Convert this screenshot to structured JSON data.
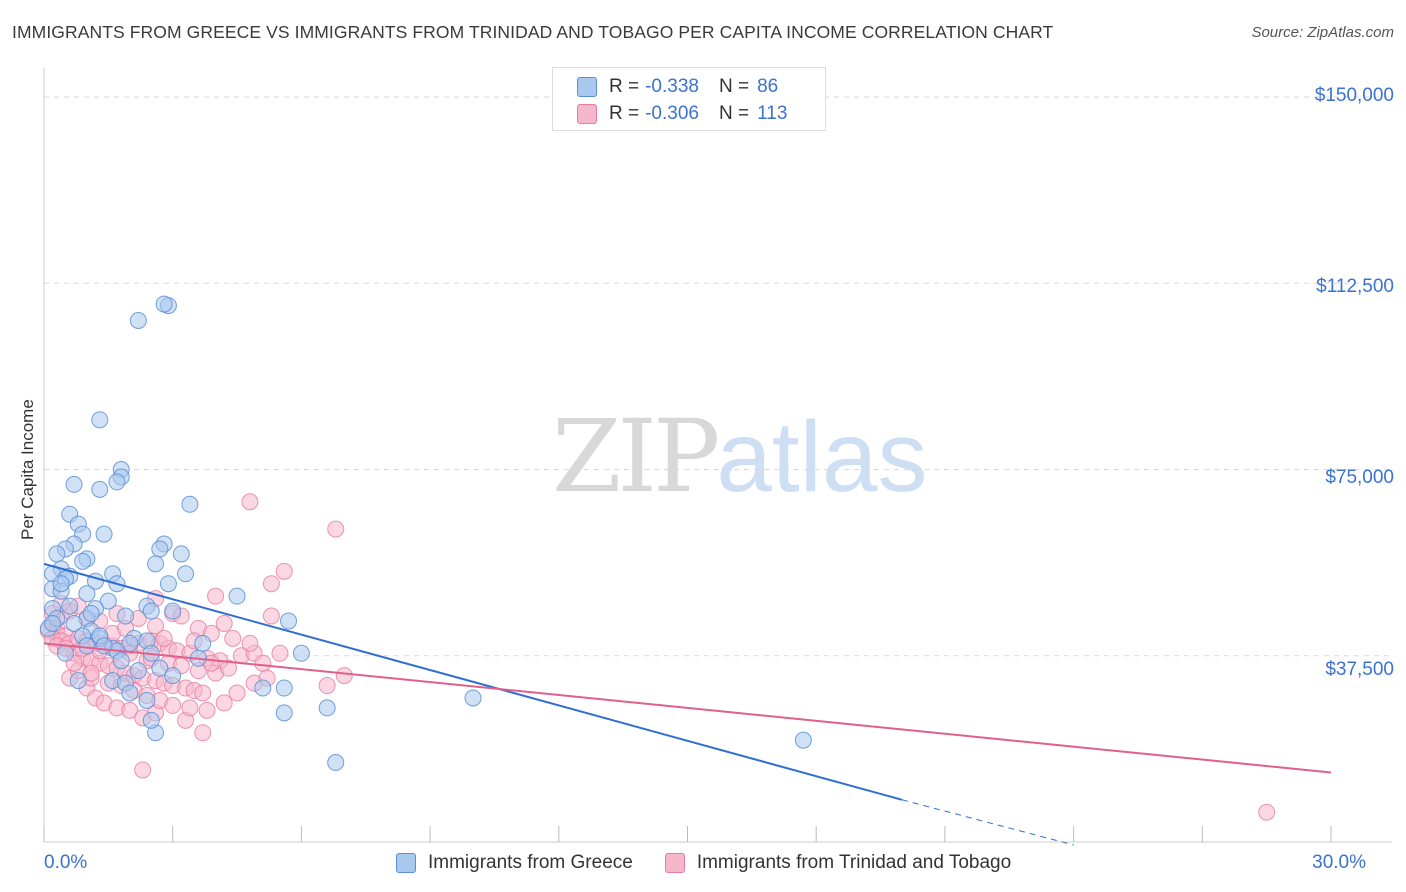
{
  "title": "IMMIGRANTS FROM GREECE VS IMMIGRANTS FROM TRINIDAD AND TOBAGO PER CAPITA INCOME CORRELATION CHART",
  "source": "Source: ZipAtlas.com",
  "watermark": {
    "zip": "ZIP",
    "atlas": "atlas"
  },
  "colors": {
    "greece_fill": "#a9c8ee",
    "greece_stroke": "#5b8fd6",
    "greece_line": "#2f6fd1",
    "tt_fill": "#f5b7cb",
    "tt_stroke": "#e87ba0",
    "tt_line": "#e0608c",
    "tick_text": "#3a72d0",
    "grid": "#d9d9d9"
  },
  "legend": {
    "rows": [
      {
        "r_label": "R =",
        "r_value": "-0.338",
        "n_label": "N =",
        "n_value": "86"
      },
      {
        "r_label": "R =",
        "r_value": "-0.306",
        "n_label": "N =",
        "n_value": "113"
      }
    ]
  },
  "chart_data": {
    "type": "scatter",
    "title": "IMMIGRANTS FROM GREECE VS IMMIGRANTS FROM TRINIDAD AND TOBAGO PER CAPITA INCOME CORRELATION CHART",
    "xlabel": "",
    "ylabel": "Per Capita Income",
    "xlim": [
      0,
      30
    ],
    "ylim": [
      0,
      150000
    ],
    "x_tick_labels": [
      "0.0%",
      "30.0%"
    ],
    "y_tick_labels": [
      "$37,500",
      "$75,000",
      "$112,500",
      "$150,000"
    ],
    "y_ticks": [
      37500,
      75000,
      112500,
      150000
    ],
    "legend_position": "top-center",
    "series": [
      {
        "name": "Immigrants from Greece",
        "r": -0.338,
        "n": 86,
        "trend": {
          "x0": 0,
          "y0": 56000,
          "x1": 20,
          "y1": 8500,
          "dashed_to_x": 24,
          "dashed_to_y": -600
        },
        "points": [
          [
            2.9,
            108000
          ],
          [
            2.8,
            108300
          ],
          [
            2.2,
            105000
          ],
          [
            1.3,
            85000
          ],
          [
            1.8,
            75000
          ],
          [
            1.8,
            73500
          ],
          [
            1.7,
            72500
          ],
          [
            0.7,
            72000
          ],
          [
            1.3,
            71000
          ],
          [
            3.4,
            68000
          ],
          [
            0.6,
            66000
          ],
          [
            0.8,
            64000
          ],
          [
            0.9,
            62000
          ],
          [
            1.4,
            62000
          ],
          [
            2.8,
            60000
          ],
          [
            2.7,
            59000
          ],
          [
            0.7,
            60000
          ],
          [
            3.2,
            58000
          ],
          [
            0.5,
            59000
          ],
          [
            0.3,
            58000
          ],
          [
            1.0,
            57000
          ],
          [
            0.9,
            56500
          ],
          [
            2.6,
            56000
          ],
          [
            0.4,
            55000
          ],
          [
            0.2,
            54000
          ],
          [
            1.6,
            54000
          ],
          [
            3.3,
            54000
          ],
          [
            0.6,
            53500
          ],
          [
            0.5,
            53000
          ],
          [
            1.2,
            52500
          ],
          [
            1.7,
            52000
          ],
          [
            2.9,
            52000
          ],
          [
            0.2,
            51000
          ],
          [
            0.4,
            50500
          ],
          [
            1.0,
            50000
          ],
          [
            4.5,
            49500
          ],
          [
            1.5,
            48500
          ],
          [
            2.4,
            47500
          ],
          [
            0.2,
            47000
          ],
          [
            1.2,
            47000
          ],
          [
            2.5,
            46500
          ],
          [
            1.9,
            45500
          ],
          [
            1.0,
            45000
          ],
          [
            0.7,
            44000
          ],
          [
            5.7,
            44500
          ],
          [
            0.1,
            43000
          ],
          [
            3.7,
            40000
          ],
          [
            1.1,
            42500
          ],
          [
            0.9,
            41500
          ],
          [
            1.3,
            41000
          ],
          [
            2.1,
            41000
          ],
          [
            2.4,
            40500
          ],
          [
            2.0,
            40000
          ],
          [
            1.0,
            39500
          ],
          [
            1.6,
            39000
          ],
          [
            6.0,
            38000
          ],
          [
            1.7,
            38500
          ],
          [
            2.5,
            38000
          ],
          [
            0.5,
            38000
          ],
          [
            3.6,
            37000
          ],
          [
            2.7,
            35000
          ],
          [
            1.6,
            32500
          ],
          [
            1.9,
            32000
          ],
          [
            0.8,
            32500
          ],
          [
            2.0,
            30000
          ],
          [
            5.1,
            31000
          ],
          [
            5.6,
            31000
          ],
          [
            10.0,
            29000
          ],
          [
            2.4,
            28500
          ],
          [
            6.6,
            27000
          ],
          [
            5.6,
            26000
          ],
          [
            2.6,
            22000
          ],
          [
            17.7,
            20500
          ],
          [
            6.8,
            16000
          ],
          [
            2.5,
            24500
          ],
          [
            1.3,
            41500
          ],
          [
            0.3,
            45000
          ],
          [
            0.6,
            47500
          ],
          [
            1.1,
            46000
          ],
          [
            3.0,
            46500
          ],
          [
            0.4,
            52000
          ],
          [
            1.8,
            36500
          ],
          [
            3.0,
            33500
          ],
          [
            2.2,
            34500
          ],
          [
            0.2,
            44000
          ],
          [
            1.4,
            39500
          ]
        ]
      },
      {
        "name": "Immigrants from Trinidad and Tobago",
        "r": -0.306,
        "n": 113,
        "trend": {
          "x0": 0,
          "y0": 40000,
          "x1": 30,
          "y1": 14000
        },
        "points": [
          [
            4.8,
            68500
          ],
          [
            6.8,
            63000
          ],
          [
            5.6,
            54500
          ],
          [
            5.3,
            52000
          ],
          [
            4.0,
            49500
          ],
          [
            2.6,
            49000
          ],
          [
            5.3,
            45500
          ],
          [
            3.0,
            46000
          ],
          [
            4.2,
            44000
          ],
          [
            0.2,
            44000
          ],
          [
            0.3,
            43000
          ],
          [
            0.1,
            42500
          ],
          [
            0.3,
            42000
          ],
          [
            0.5,
            41500
          ],
          [
            0.2,
            41000
          ],
          [
            0.4,
            40500
          ],
          [
            0.6,
            40000
          ],
          [
            0.8,
            41000
          ],
          [
            1.0,
            40500
          ],
          [
            1.2,
            40000
          ],
          [
            1.4,
            40000
          ],
          [
            1.6,
            39500
          ],
          [
            1.8,
            39000
          ],
          [
            2.0,
            39500
          ],
          [
            2.2,
            40000
          ],
          [
            2.5,
            40500
          ],
          [
            2.7,
            40000
          ],
          [
            2.9,
            39000
          ],
          [
            3.1,
            38500
          ],
          [
            3.4,
            38000
          ],
          [
            3.8,
            37000
          ],
          [
            4.1,
            36500
          ],
          [
            4.6,
            37500
          ],
          [
            4.9,
            38000
          ],
          [
            5.1,
            36000
          ],
          [
            0.7,
            38000
          ],
          [
            0.9,
            37000
          ],
          [
            1.1,
            36500
          ],
          [
            1.3,
            36000
          ],
          [
            1.5,
            35500
          ],
          [
            1.7,
            35000
          ],
          [
            1.9,
            34000
          ],
          [
            2.1,
            33500
          ],
          [
            2.3,
            33000
          ],
          [
            2.6,
            32500
          ],
          [
            2.8,
            32000
          ],
          [
            3.0,
            31500
          ],
          [
            3.3,
            31000
          ],
          [
            3.5,
            30500
          ],
          [
            3.7,
            30000
          ],
          [
            4.0,
            34000
          ],
          [
            4.3,
            35000
          ],
          [
            1.0,
            31000
          ],
          [
            1.2,
            29000
          ],
          [
            1.4,
            28000
          ],
          [
            1.7,
            27000
          ],
          [
            2.0,
            26500
          ],
          [
            2.3,
            25000
          ],
          [
            2.6,
            26000
          ],
          [
            3.3,
            24500
          ],
          [
            3.7,
            22000
          ],
          [
            2.3,
            14500
          ],
          [
            0.6,
            33000
          ],
          [
            0.8,
            34500
          ],
          [
            1.1,
            33000
          ],
          [
            1.5,
            32000
          ],
          [
            1.8,
            31500
          ],
          [
            2.1,
            30500
          ],
          [
            2.4,
            29500
          ],
          [
            2.7,
            28500
          ],
          [
            3.0,
            27500
          ],
          [
            3.4,
            27000
          ],
          [
            3.8,
            26500
          ],
          [
            4.2,
            28000
          ],
          [
            4.5,
            30000
          ],
          [
            4.9,
            32000
          ],
          [
            5.2,
            33000
          ],
          [
            6.6,
            31500
          ],
          [
            7.0,
            33500
          ],
          [
            0.4,
            45500
          ],
          [
            0.6,
            46500
          ],
          [
            0.8,
            47500
          ],
          [
            1.0,
            45000
          ],
          [
            1.3,
            44500
          ],
          [
            1.7,
            46000
          ],
          [
            2.2,
            45000
          ],
          [
            2.6,
            43500
          ],
          [
            3.2,
            45500
          ],
          [
            3.6,
            43000
          ],
          [
            3.9,
            42000
          ],
          [
            4.4,
            41000
          ],
          [
            4.8,
            40000
          ],
          [
            28.5,
            6000
          ],
          [
            0.3,
            39500
          ],
          [
            0.5,
            39000
          ],
          [
            0.9,
            39000
          ],
          [
            1.3,
            38500
          ],
          [
            2.0,
            38000
          ],
          [
            2.4,
            36500
          ],
          [
            2.9,
            36000
          ],
          [
            3.2,
            35500
          ],
          [
            3.6,
            34500
          ],
          [
            0.2,
            46000
          ],
          [
            0.4,
            48000
          ],
          [
            1.6,
            42000
          ],
          [
            2.8,
            41000
          ],
          [
            3.5,
            40500
          ],
          [
            1.9,
            43000
          ],
          [
            0.7,
            36000
          ],
          [
            1.1,
            34000
          ],
          [
            2.5,
            37000
          ],
          [
            3.9,
            36000
          ],
          [
            5.5,
            38000
          ]
        ]
      }
    ]
  },
  "bottom_legend": {
    "items": [
      "Immigrants from Greece",
      "Immigrants from Trinidad and Tobago"
    ]
  }
}
